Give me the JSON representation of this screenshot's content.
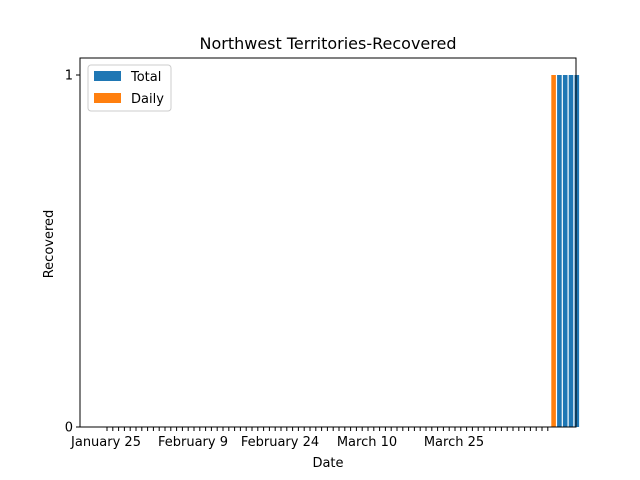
{
  "chart_data": {
    "type": "bar",
    "title": "Northwest Territories-Recovered",
    "xlabel": "Date",
    "ylabel": "Recovered",
    "ylim": [
      0,
      1
    ],
    "y_ticks": [
      "0",
      "1"
    ],
    "x_tick_labels": [
      "January 25",
      "February 9",
      "February 24",
      "March 10",
      "March 25"
    ],
    "x_start": "January 25",
    "categories_count": 77,
    "legend": {
      "placement": "top-left"
    },
    "grid": false,
    "series": [
      {
        "name": "Total",
        "color": "#1f77b4",
        "points": [
          {
            "date": "April 12",
            "value": 1
          },
          {
            "date": "April 13",
            "value": 1
          },
          {
            "date": "April 14",
            "value": 1
          },
          {
            "date": "April 15",
            "value": 1
          }
        ]
      },
      {
        "name": "Daily",
        "color": "#ff7f0e",
        "points": [
          {
            "date": "April 11",
            "value": 1
          }
        ]
      }
    ]
  }
}
